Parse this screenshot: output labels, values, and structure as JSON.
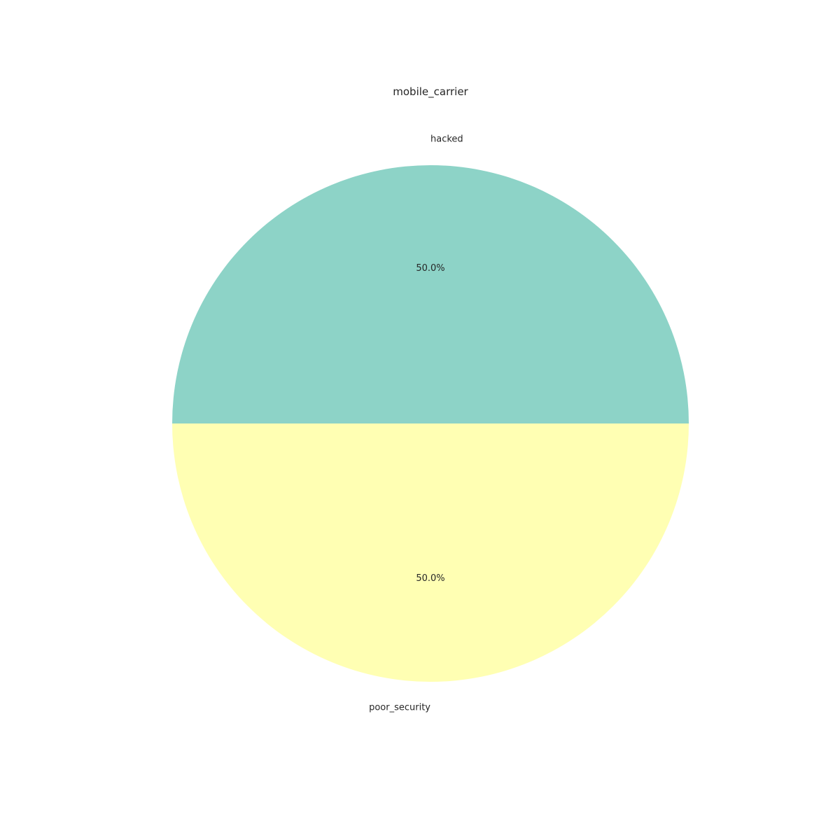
{
  "chart_data": {
    "type": "pie",
    "title": "mobile_carrier",
    "labels": [
      "hacked",
      "poor_security"
    ],
    "values": [
      50.0,
      50.0
    ],
    "percent_labels": [
      "50.0%",
      "50.0%"
    ],
    "colors": [
      "#8dd3c7",
      "#ffffb3"
    ],
    "start_angle_deg": 0,
    "direction": "counterclockwise"
  }
}
